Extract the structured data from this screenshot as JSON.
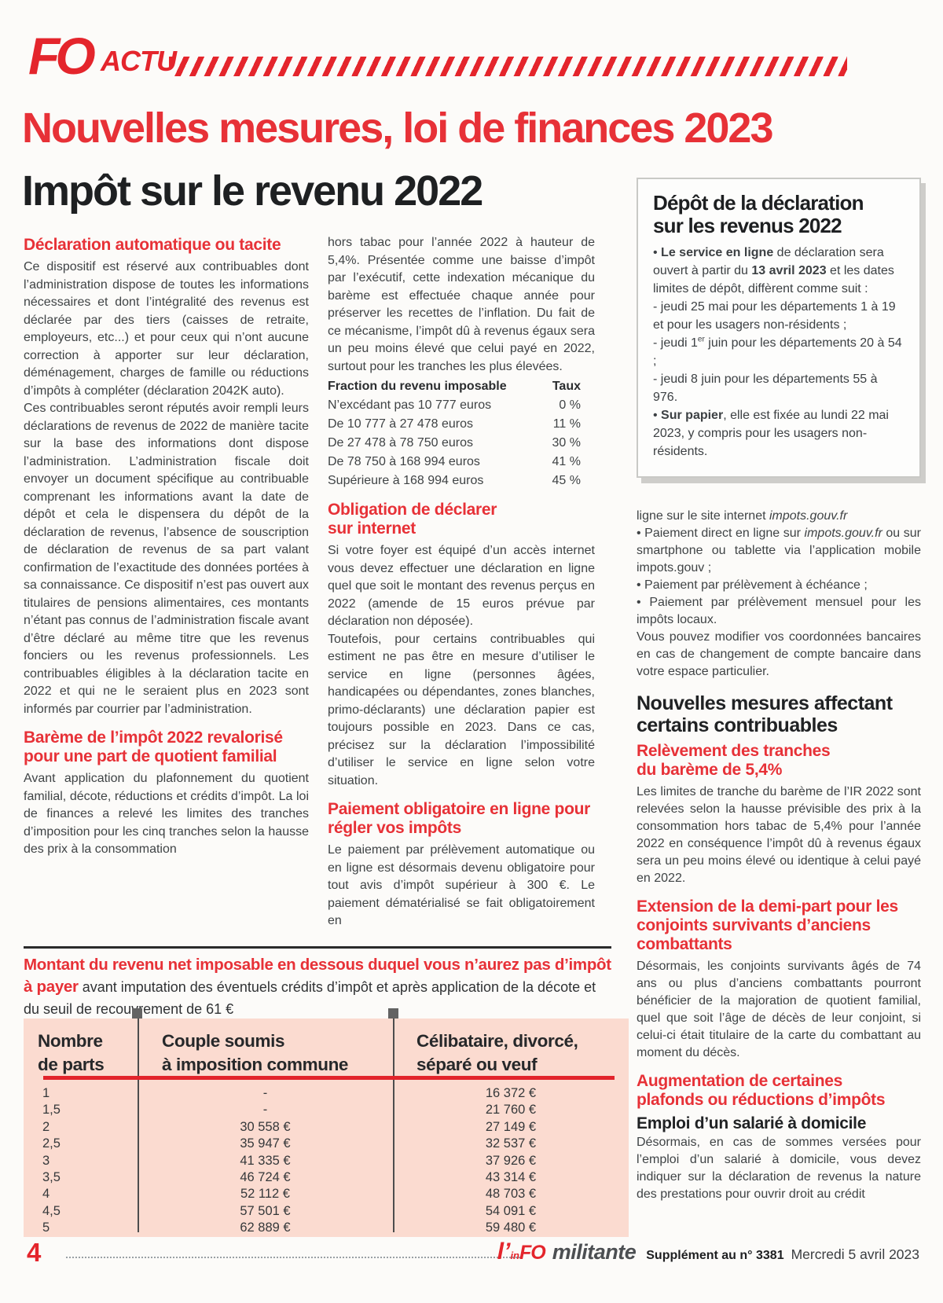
{
  "colors": {
    "accent_red": "#e4252c",
    "heading_red": "#e73137",
    "table_pink": "#fbdbd0",
    "text_dark": "#3f4345"
  },
  "header": {
    "logo_fo": "FO",
    "logo_actu": "ACTU"
  },
  "title": {
    "line1": "Nouvelles mesures, loi de finances 2023",
    "line2": "Impôt sur le revenu 2022"
  },
  "col1": {
    "h1": "Déclaration automatique ou tacite",
    "p1": "Ce dispositif est réservé aux contribuables dont l’administration dispose de toutes les informations nécessaires et dont l’intégralité des revenus est déclarée par des tiers (caisses de retraite, employeurs, etc...) et pour ceux qui n’ont aucune correction à apporter sur leur déclaration, déménagement, charges de famille ou réductions d’impôts à compléter (déclaration 2042K auto).",
    "p2": "Ces contribuables seront réputés avoir rempli leurs déclarations de revenus de 2022 de manière tacite sur la base des informations dont dispose l’administration. L’administration fiscale doit envoyer un document spécifique au contribuable comprenant les informations avant la date de dépôt et cela le dispensera du dépôt de la déclaration de revenus, l’absence de souscription de déclaration de revenus de sa part valant confirmation de l’exactitude des données portées à sa connaissance. Ce dispositif n’est pas ouvert aux titulaires de pensions alimentaires, ces montants n’étant pas connus de l’administration fiscale avant d’être déclaré au même titre que les revenus fonciers ou les revenus professionnels. Les contribuables éligibles à la déclaration tacite en 2022 et qui ne le seraient plus en 2023 sont informés par courrier par l’administration.",
    "h2_lines": [
      "Barème de l’impôt 2022 revalorisé",
      "pour une part de quotient familial"
    ],
    "p3": "Avant application du plafonnement du quotient familial, décote, réductions et crédits d’impôt. La loi de finances a relevé les limites des tranches d’imposition pour les cinq tranches selon la hausse des prix à la consommation"
  },
  "col2": {
    "p1": "hors tabac pour l’année 2022 à hauteur de 5,4%. Présentée comme une baisse d’impôt par l’exécutif, cette indexation mécanique du barème est effectuée chaque année pour préserver les recettes de l’inflation. Du fait de ce mécanisme, l’impôt dû à revenus égaux sera un peu moins élevé que celui payé en 2022, surtout pour les tranches les plus élevées.",
    "bracket": {
      "head_label": "Fraction du revenu imposable",
      "head_rate": "Taux",
      "rows": [
        {
          "label": "N’excédant pas 10 777 euros",
          "rate": "0 %"
        },
        {
          "label": "De 10 777 à 27 478 euros",
          "rate": "11 %"
        },
        {
          "label": "De 27 478 à 78 750 euros",
          "rate": "30 %"
        },
        {
          "label": "De 78 750 à 168 994 euros",
          "rate": "41 %"
        },
        {
          "label": "Supérieure à 168 994 euros",
          "rate": "45 %"
        }
      ]
    },
    "h1_lines": [
      "Obligation de déclarer",
      "sur internet"
    ],
    "p2": "Si votre foyer est équipé d’un accès internet vous devez effectuer une déclaration en ligne quel que soit le montant des revenus perçus en 2022 (amende de 15 euros prévue par déclaration non déposée).",
    "p3": "Toutefois, pour certains contribuables qui estiment ne pas être en mesure d’utiliser le service en ligne (personnes âgées, handicapées ou dépendantes, zones blanches, primo-déclarants) une déclaration papier est toujours possible en 2023. Dans ce cas, précisez sur la déclaration l’impossibilité d’utiliser le service en ligne selon votre situation.",
    "h2_lines": [
      "Paiement obligatoire en ligne pour",
      "régler vos impôts"
    ],
    "p4": "Le paiement par prélèvement automatique ou en ligne est désormais devenu obligatoire pour tout avis d’impôt supérieur à 300 €. Le paiement dématérialisé se fait obligatoirement en"
  },
  "sidebox": {
    "title_lines": [
      "Dépôt de la déclaration",
      "sur les revenus 2022"
    ],
    "b1_bullet": "• ",
    "b1_bold1": "Le service en ligne",
    "b1_t1": " de déclaration sera ouvert à partir du ",
    "b1_bold2": "13 avril 2023",
    "b1_t2": " et les dates limites de dépôt, diffèrent comme suit :",
    "l1": "- jeudi 25 mai pour les départements 1 à 19 et pour les usagers non-résidents ;",
    "l2a": "-  jeudi 1",
    "l2sup": "er",
    "l2b": " juin pour les départements 20 à 54 ;",
    "l3": "- jeudi 8 juin pour les départements 55 à 976.",
    "b2_bullet": "• ",
    "b2_bold": "Sur papier",
    "b2_t": ", elle est fixée au lundi 22 mai 2023, y compris pour les usagers non-résidents."
  },
  "col3": {
    "p0a": "ligne sur le site internet ",
    "p0b": "impots.gouv.fr",
    "b1a": "•  Paiement direct en ligne sur ",
    "b1b": "impots.gouv.fr",
    "b1c": " ou sur smartphone ou tablette via l’application mobile impots.gouv ;",
    "b2": "• Paiement par prélèvement à échéance ;",
    "b3": "• Paiement par prélèvement mensuel pour les impôts locaux.",
    "p1": "Vous pouvez modifier vos coordonnées bancaires en cas de changement de compte bancaire dans votre espace particulier.",
    "h_black_lines": [
      "Nouvelles mesures affectant",
      "certains contribuables"
    ],
    "h_red1_lines": [
      "Relèvement des tranches",
      "du barème de 5,4%"
    ],
    "p2": "Les limites de tranche du barème de l’IR 2022 sont relevées selon la hausse prévisible des prix à la consommation hors tabac de 5,4% pour l’année 2022 en conséquence l’impôt dû à revenus égaux sera un peu moins élevé ou identique à celui payé en 2022.",
    "h_red2_lines": [
      "Extension de la demi-part pour les",
      "conjoints survivants d’anciens",
      "combattants"
    ],
    "p3": "Désormais, les conjoints survivants âgés de 74 ans ou plus d’anciens combattants pourront bénéficier de la majoration de quotient familial, quel que soit l’âge de décès de leur conjoint, si celui-ci était titulaire de la carte du combattant au moment du décès.",
    "h_red3_lines": [
      "Augmentation de certaines",
      "plafonds ou réductions d’impôts"
    ],
    "h_sub": "Emploi d’un salarié à domicile",
    "p4": "Désormais, en cas de sommes versées pour l’emploi d’un salarié à domicile, vous devez indiquer sur la déclaration de revenus la nature des prestations pour ouvrir droit au crédit"
  },
  "bottom_lead": {
    "red": "Montant du revenu net imposable en dessous duquel vous n’aurez pas d’impôt à payer",
    "black": " avant imputation des éventuels crédits d’impôt et après application de la décote et du seuil de recouvrement  de 61 €"
  },
  "income_table": {
    "headers": {
      "c1_lines": [
        "Nombre",
        "de parts"
      ],
      "c2_lines": [
        "Couple soumis",
        "à imposition commune"
      ],
      "c3_lines": [
        "Célibataire, divorcé,",
        "séparé ou veuf"
      ]
    },
    "rows": [
      {
        "parts": "1",
        "couple": "-",
        "single": "16 372 €"
      },
      {
        "parts": "1,5",
        "couple": "-",
        "single": "21 760 €"
      },
      {
        "parts": "2",
        "couple": "30 558 €",
        "single": "27 149 €"
      },
      {
        "parts": "2,5",
        "couple": "35 947 €",
        "single": "32 537 €"
      },
      {
        "parts": "3",
        "couple": "41 335 €",
        "single": "37 926 €"
      },
      {
        "parts": "3,5",
        "couple": "46 724 €",
        "single": "43 314 €"
      },
      {
        "parts": "4",
        "couple": "52 112 €",
        "single": "48 703 €"
      },
      {
        "parts": "4,5",
        "couple": "57 501 €",
        "single": "54 091 €"
      },
      {
        "parts": "5",
        "couple": "62 889 €",
        "single": "59 480 €"
      }
    ]
  },
  "footer": {
    "page_number": "4",
    "logo_l": "l’",
    "logo_in": "in",
    "logo_fo": "FO",
    "logo_militante": "militante",
    "supplement": "Supplément au n° 3381",
    "date": "Mercredi 5 avril 2023"
  }
}
